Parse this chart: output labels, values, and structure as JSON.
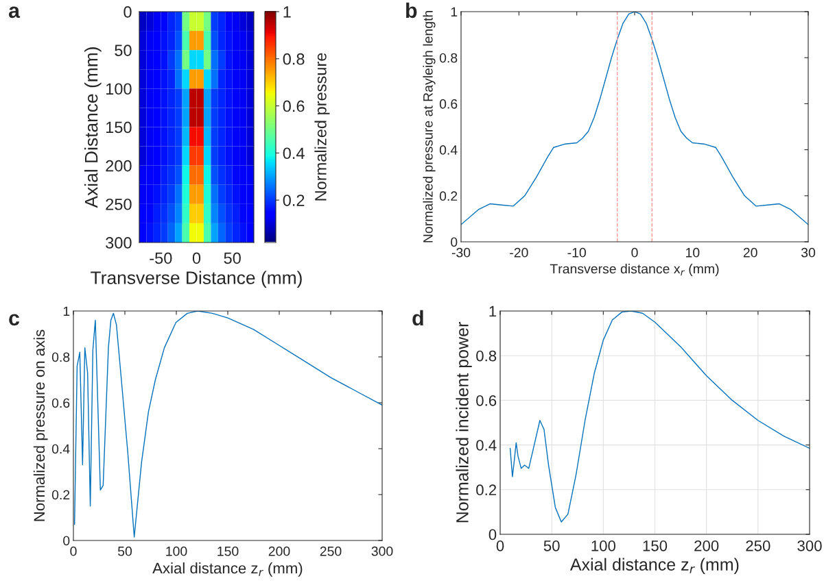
{
  "chart_data": [
    {
      "type": "heatmap",
      "title": "a",
      "xlabel": "Transverse Distance (mm)",
      "ylabel": "Axial Distance (mm)",
      "clabel": "Normalized pressure",
      "xlim": [
        -80,
        80
      ],
      "xticks": [
        -50,
        0,
        50
      ],
      "ylim": [
        300,
        0
      ],
      "yticks": [
        0,
        50,
        100,
        150,
        200,
        250,
        300
      ],
      "clim": [
        0.02,
        1
      ],
      "cticks": [
        0.2,
        0.4,
        0.6,
        0.8,
        1
      ],
      "cells": [
        [
          0.08,
          0.1,
          0.12,
          0.15,
          0.18,
          0.2,
          0.5,
          0.6,
          0.6,
          0.5,
          0.2,
          0.18,
          0.15,
          0.12,
          0.1,
          0.08
        ],
        [
          0.1,
          0.12,
          0.14,
          0.16,
          0.18,
          0.22,
          0.45,
          0.75,
          0.75,
          0.45,
          0.22,
          0.18,
          0.16,
          0.14,
          0.12,
          0.1
        ],
        [
          0.1,
          0.12,
          0.14,
          0.16,
          0.2,
          0.25,
          0.5,
          0.35,
          0.35,
          0.5,
          0.25,
          0.2,
          0.16,
          0.14,
          0.12,
          0.1
        ],
        [
          0.1,
          0.12,
          0.14,
          0.16,
          0.18,
          0.25,
          0.35,
          0.75,
          0.75,
          0.35,
          0.25,
          0.18,
          0.16,
          0.14,
          0.12,
          0.1
        ],
        [
          0.1,
          0.12,
          0.14,
          0.16,
          0.18,
          0.2,
          0.3,
          0.95,
          0.95,
          0.3,
          0.2,
          0.18,
          0.16,
          0.14,
          0.12,
          0.1
        ],
        [
          0.1,
          0.12,
          0.14,
          0.16,
          0.18,
          0.2,
          0.3,
          0.95,
          0.95,
          0.3,
          0.2,
          0.18,
          0.16,
          0.14,
          0.12,
          0.1
        ],
        [
          0.1,
          0.12,
          0.14,
          0.16,
          0.18,
          0.2,
          0.32,
          0.9,
          0.9,
          0.32,
          0.2,
          0.18,
          0.16,
          0.14,
          0.12,
          0.1
        ],
        [
          0.1,
          0.12,
          0.14,
          0.16,
          0.18,
          0.2,
          0.35,
          0.85,
          0.85,
          0.35,
          0.2,
          0.18,
          0.16,
          0.14,
          0.12,
          0.1
        ],
        [
          0.12,
          0.13,
          0.15,
          0.17,
          0.19,
          0.22,
          0.38,
          0.8,
          0.8,
          0.38,
          0.22,
          0.19,
          0.17,
          0.15,
          0.13,
          0.12
        ],
        [
          0.12,
          0.14,
          0.16,
          0.18,
          0.2,
          0.25,
          0.4,
          0.75,
          0.75,
          0.4,
          0.25,
          0.2,
          0.18,
          0.16,
          0.14,
          0.12
        ],
        [
          0.13,
          0.15,
          0.17,
          0.19,
          0.22,
          0.27,
          0.42,
          0.7,
          0.7,
          0.42,
          0.27,
          0.22,
          0.19,
          0.17,
          0.15,
          0.13
        ],
        [
          0.14,
          0.16,
          0.18,
          0.2,
          0.24,
          0.3,
          0.45,
          0.65,
          0.65,
          0.45,
          0.3,
          0.24,
          0.2,
          0.18,
          0.16,
          0.14
        ]
      ]
    },
    {
      "type": "line",
      "title": "b",
      "xlabel": "Transverse distance x$_{r}$ (mm)",
      "ylabel": "Normalized pressure at Rayleigh length",
      "xlim": [
        -30,
        30
      ],
      "xticks": [
        -30,
        -20,
        -10,
        0,
        10,
        20,
        30
      ],
      "ylim": [
        0,
        1
      ],
      "yticks": [
        0,
        0.2,
        0.4,
        0.6,
        0.8,
        1
      ],
      "grid": false,
      "x": [
        -30,
        -27,
        -25,
        -23,
        -21,
        -19,
        -17,
        -15,
        -14,
        -12,
        -10,
        -9,
        -8,
        -7,
        -6,
        -5,
        -4,
        -3,
        -2,
        -1,
        0,
        1,
        2,
        3,
        4,
        5,
        6,
        7,
        8,
        9,
        10,
        12,
        14,
        15,
        17,
        19,
        21,
        23,
        25,
        27,
        30
      ],
      "series": [
        {
          "color": "#0072bd",
          "values": [
            0.075,
            0.14,
            0.165,
            0.16,
            0.155,
            0.2,
            0.28,
            0.37,
            0.41,
            0.425,
            0.43,
            0.45,
            0.48,
            0.54,
            0.62,
            0.71,
            0.8,
            0.88,
            0.95,
            0.99,
            1.0,
            0.99,
            0.95,
            0.88,
            0.8,
            0.71,
            0.62,
            0.54,
            0.48,
            0.45,
            0.43,
            0.425,
            0.41,
            0.37,
            0.28,
            0.2,
            0.155,
            0.16,
            0.165,
            0.14,
            0.075
          ]
        }
      ],
      "ref_lines": [
        {
          "axis": "x",
          "value": -3,
          "color": "#ff9999",
          "line_style": "dashed"
        },
        {
          "axis": "x",
          "value": 3,
          "color": "#ff9999",
          "line_style": "dashed"
        }
      ]
    },
    {
      "type": "line",
      "title": "c",
      "xlabel": "Axial distance z$_{r}$ (mm)",
      "ylabel": "Normalized pressure on axis",
      "xlim": [
        0,
        300
      ],
      "xticks": [
        0,
        50,
        100,
        150,
        200,
        250,
        300
      ],
      "ylim": [
        0,
        1
      ],
      "yticks": [
        0,
        0.2,
        0.4,
        0.6,
        0.8,
        1
      ],
      "grid": false,
      "x": [
        1.1,
        3.6,
        4.9,
        6.2,
        8.9,
        11.1,
        13.8,
        16.4,
        18.9,
        21.3,
        26.2,
        28.9,
        34,
        36.4,
        38.9,
        41.8,
        46.2,
        52.9,
        59.1,
        66.2,
        72.9,
        79.6,
        88.4,
        99.6,
        110.7,
        120.7,
        135,
        150,
        175,
        200,
        225,
        250,
        275,
        300
      ],
      "series": [
        {
          "color": "#0072bd",
          "values": [
            0.07,
            0.76,
            0.79,
            0.82,
            0.33,
            0.84,
            0.73,
            0.15,
            0.83,
            0.96,
            0.22,
            0.24,
            0.84,
            0.96,
            0.99,
            0.94,
            0.72,
            0.38,
            0.015,
            0.34,
            0.56,
            0.7,
            0.84,
            0.95,
            0.99,
            1.0,
            0.99,
            0.97,
            0.92,
            0.85,
            0.78,
            0.71,
            0.65,
            0.59
          ]
        }
      ]
    },
    {
      "type": "line",
      "title": "d",
      "xlabel": "Axial distance z$_{r}$ (mm)",
      "ylabel": "Normalized incident power",
      "xlim": [
        0,
        300
      ],
      "xticks": [
        0,
        50,
        100,
        150,
        200,
        250,
        300
      ],
      "ylim": [
        0,
        1
      ],
      "yticks": [
        0,
        0.2,
        0.4,
        0.6,
        0.8,
        1
      ],
      "grid": true,
      "x": [
        9.7,
        11.9,
        13.7,
        15.5,
        17.3,
        20.4,
        23.7,
        27.7,
        32.5,
        38.5,
        42.5,
        46.9,
        53.5,
        59.3,
        65.7,
        73.5,
        82.3,
        91.2,
        100,
        108.8,
        118,
        127,
        138,
        150,
        175,
        200,
        225,
        250,
        275,
        300
      ],
      "series": [
        {
          "color": "#0072bd",
          "values": [
            0.385,
            0.258,
            0.33,
            0.41,
            0.35,
            0.295,
            0.31,
            0.295,
            0.39,
            0.51,
            0.47,
            0.31,
            0.12,
            0.055,
            0.09,
            0.265,
            0.51,
            0.72,
            0.87,
            0.96,
            0.995,
            1.0,
            0.99,
            0.95,
            0.84,
            0.71,
            0.6,
            0.51,
            0.44,
            0.385
          ]
        }
      ]
    }
  ]
}
